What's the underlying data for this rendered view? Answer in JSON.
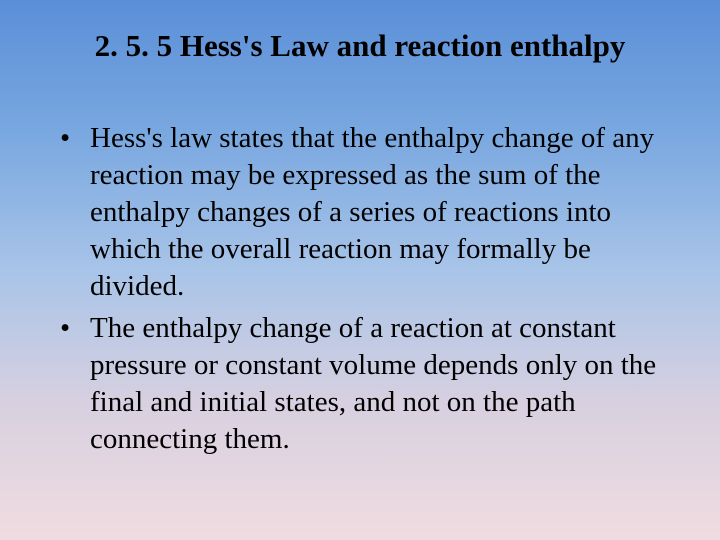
{
  "slide": {
    "title": "2. 5. 5 Hess's Law and reaction enthalpy",
    "bullets": [
      "Hess's law states that the enthalpy change of any reaction may be expressed as the sum of the enthalpy changes of a series of reactions into which the overall reaction may formally be divided.",
      "The enthalpy change of a reaction at constant pressure or constant volume depends only on the final and initial states, and not on the path connecting them."
    ]
  },
  "style": {
    "background_gradient": [
      "#5a8fd8",
      "#7aa8e0",
      "#a8c4e8",
      "#d8d0e0",
      "#f0dce0"
    ],
    "title_fontsize": 31,
    "body_fontsize": 29,
    "font_family": "Times New Roman",
    "text_color": "#000000",
    "bullet_marker": "•"
  }
}
